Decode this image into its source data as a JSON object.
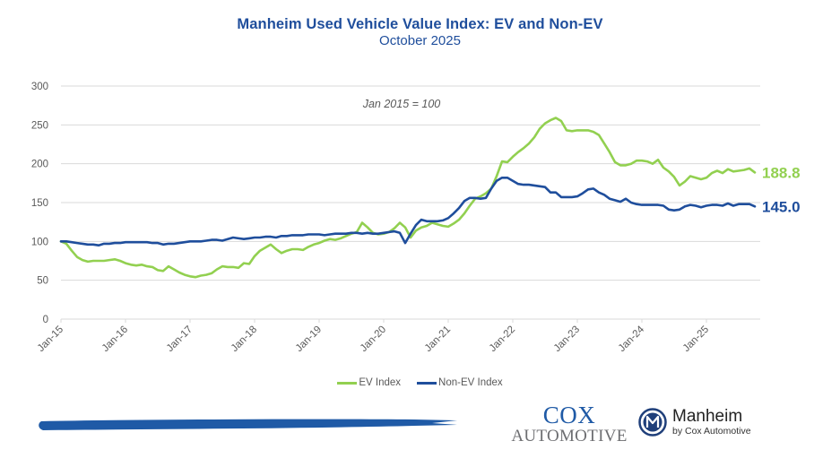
{
  "header": {
    "title": "Manheim Used Vehicle Value Index: EV and Non-EV",
    "subtitle": "October 2025"
  },
  "chart_data": {
    "type": "line",
    "title": "Manheim Used Vehicle Value Index: EV and Non-EV",
    "subtitle": "October 2025",
    "annotation": "Jan 2015 = 100",
    "xlabel": "",
    "ylabel": "",
    "ylim": [
      0,
      300
    ],
    "yticks": [
      0,
      50,
      100,
      150,
      200,
      250,
      300
    ],
    "grid": true,
    "x_start": "Jan-15",
    "x_end": "Oct-25",
    "frequency": "monthly",
    "xtick_labels": [
      "Jan-15",
      "Jan-16",
      "Jan-17",
      "Jan-18",
      "Jan-19",
      "Jan-20",
      "Jan-21",
      "Jan-22",
      "Jan-23",
      "Jan-24",
      "Jan-25"
    ],
    "legend_position": "bottom",
    "series": [
      {
        "name": "EV Index",
        "color": "#92d050",
        "end_label": "188.8",
        "values": [
          100,
          97,
          88,
          80,
          76,
          74,
          75,
          75,
          75,
          76,
          77,
          75,
          72,
          70,
          69,
          70,
          68,
          67,
          63,
          62,
          68,
          64,
          60,
          57,
          55,
          54,
          56,
          57,
          59,
          64,
          68,
          67,
          67,
          66,
          72,
          71,
          81,
          88,
          92,
          96,
          90,
          85,
          88,
          90,
          90,
          89,
          93,
          96,
          98,
          101,
          103,
          102,
          104,
          107,
          110,
          112,
          124,
          118,
          111,
          109,
          110,
          112,
          117,
          124,
          118,
          105,
          114,
          118,
          120,
          124,
          122,
          120,
          119,
          123,
          128,
          136,
          146,
          155,
          158,
          162,
          168,
          184,
          203,
          202,
          209,
          215,
          220,
          226,
          234,
          245,
          252,
          256,
          259,
          255,
          243,
          242,
          243,
          243,
          243,
          241,
          237,
          226,
          215,
          202,
          198,
          198,
          200,
          204,
          204,
          203,
          200,
          205,
          195,
          190,
          183,
          172,
          177,
          184,
          182,
          180,
          182,
          188,
          191,
          188,
          193,
          190,
          191,
          192,
          194,
          188.8
        ]
      },
      {
        "name": "Non-EV Index",
        "color": "#1f4e9c",
        "end_label": "145.0",
        "values": [
          100,
          100,
          99,
          98,
          97,
          96,
          96,
          95,
          97,
          97,
          98,
          98,
          99,
          99,
          99,
          99,
          99,
          98,
          98,
          96,
          97,
          97,
          98,
          99,
          100,
          100,
          100,
          101,
          102,
          102,
          101,
          103,
          105,
          104,
          103,
          104,
          105,
          105,
          106,
          106,
          105,
          107,
          107,
          108,
          108,
          108,
          109,
          109,
          109,
          108,
          109,
          110,
          110,
          110,
          111,
          111,
          110,
          111,
          110,
          110,
          111,
          112,
          113,
          111,
          98,
          110,
          121,
          128,
          126,
          126,
          126,
          127,
          130,
          136,
          143,
          152,
          156,
          156,
          155,
          156,
          168,
          178,
          182,
          182,
          178,
          174,
          173,
          173,
          172,
          171,
          170,
          163,
          163,
          157,
          157,
          157,
          158,
          162,
          167,
          168,
          163,
          160,
          155,
          153,
          151,
          155,
          150,
          148,
          147,
          147,
          147,
          147,
          146,
          141,
          140,
          141,
          145,
          147,
          146,
          144,
          146,
          147,
          147,
          146,
          149,
          146,
          148,
          148,
          148,
          145.0
        ]
      }
    ]
  },
  "legend": {
    "items": [
      {
        "label": "EV Index",
        "color": "#92d050"
      },
      {
        "label": "Non-EV Index",
        "color": "#1f4e9c"
      }
    ]
  },
  "footer": {
    "brand_stroke_color": "#1f5aa6",
    "cox_logo_top": "COX",
    "cox_logo_bottom": "AUTOMOTIVE",
    "manheim_name": "Manheim",
    "manheim_sub": "by Cox Automotive"
  }
}
